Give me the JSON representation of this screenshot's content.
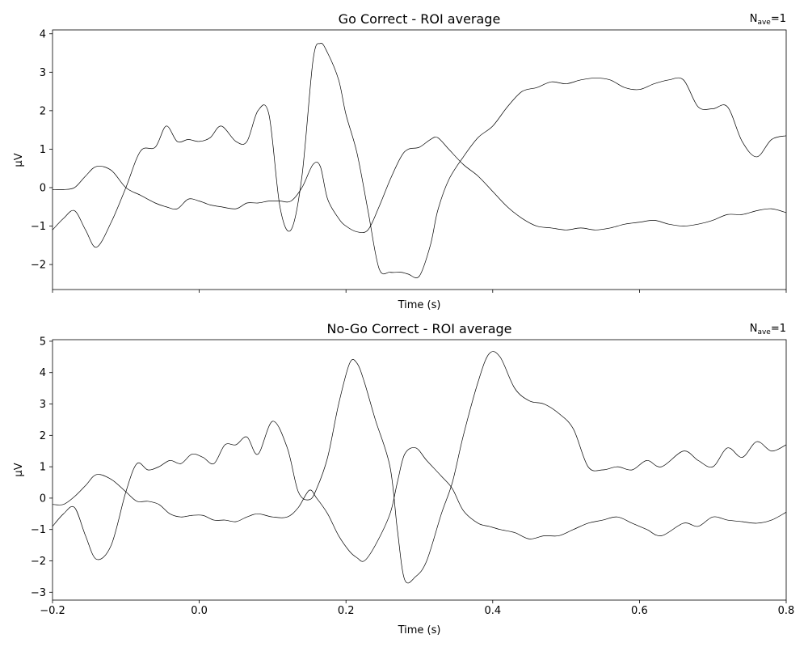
{
  "chart_data": [
    {
      "type": "line",
      "title": "Go Correct - ROI average",
      "annotation": {
        "main": "N",
        "sub": "ave",
        "suffix": "=1"
      },
      "xlabel": "Time (s)",
      "ylabel": "μV",
      "xlim": [
        -0.2,
        0.8
      ],
      "ylim": [
        -2.65,
        4.1
      ],
      "xticks": [
        -0.2,
        0.0,
        0.2,
        0.4,
        0.6,
        0.8
      ],
      "xtick_labels_visible": false,
      "yticks": [
        -2,
        -1,
        0,
        1,
        2,
        3,
        4
      ],
      "ytick_labels": [
        "−2",
        "−1",
        "0",
        "1",
        "2",
        "3",
        "4"
      ],
      "grid": false,
      "series": [
        {
          "color": "#000000",
          "x": [
            -0.2,
            -0.185,
            -0.17,
            -0.155,
            -0.14,
            -0.12,
            -0.1,
            -0.08,
            -0.06,
            -0.045,
            -0.03,
            -0.015,
            0.0,
            0.015,
            0.03,
            0.05,
            0.065,
            0.08,
            0.095,
            0.11,
            0.125,
            0.14,
            0.155,
            0.165,
            0.175,
            0.19,
            0.2,
            0.215,
            0.23,
            0.245,
            0.26,
            0.275,
            0.285,
            0.3,
            0.315,
            0.325,
            0.34,
            0.36,
            0.38,
            0.4,
            0.42,
            0.44,
            0.46,
            0.48,
            0.5,
            0.52,
            0.54,
            0.56,
            0.58,
            0.6,
            0.62,
            0.64,
            0.66,
            0.68,
            0.7,
            0.72,
            0.74,
            0.76,
            0.78,
            0.8
          ],
          "y": [
            -1.1,
            -0.8,
            -0.6,
            -1.1,
            -1.55,
            -0.9,
            0.0,
            0.95,
            1.05,
            1.6,
            1.2,
            1.25,
            1.2,
            1.3,
            1.6,
            1.2,
            1.2,
            2.0,
            1.9,
            -0.5,
            -1.1,
            0.3,
            3.3,
            3.75,
            3.5,
            2.8,
            1.9,
            0.9,
            -0.6,
            -2.1,
            -2.2,
            -2.2,
            -2.25,
            -2.3,
            -1.5,
            -0.6,
            0.2,
            0.8,
            1.3,
            1.6,
            2.1,
            2.5,
            2.6,
            2.75,
            2.7,
            2.8,
            2.85,
            2.8,
            2.6,
            2.55,
            2.7,
            2.8,
            2.8,
            2.1,
            2.05,
            2.1,
            1.2,
            0.8,
            1.25,
            1.35
          ]
        },
        {
          "color": "#000000",
          "x": [
            -0.2,
            -0.185,
            -0.17,
            -0.155,
            -0.14,
            -0.12,
            -0.1,
            -0.08,
            -0.06,
            -0.045,
            -0.03,
            -0.015,
            0.0,
            0.015,
            0.03,
            0.05,
            0.065,
            0.08,
            0.095,
            0.11,
            0.125,
            0.14,
            0.155,
            0.165,
            0.175,
            0.19,
            0.2,
            0.215,
            0.23,
            0.245,
            0.26,
            0.275,
            0.285,
            0.3,
            0.315,
            0.325,
            0.34,
            0.36,
            0.38,
            0.4,
            0.42,
            0.44,
            0.46,
            0.48,
            0.5,
            0.52,
            0.54,
            0.56,
            0.58,
            0.6,
            0.62,
            0.64,
            0.66,
            0.68,
            0.7,
            0.72,
            0.74,
            0.76,
            0.78,
            0.8
          ],
          "y": [
            -0.05,
            -0.05,
            0.0,
            0.3,
            0.55,
            0.45,
            0.0,
            -0.2,
            -0.4,
            -0.5,
            -0.55,
            -0.3,
            -0.35,
            -0.45,
            -0.5,
            -0.55,
            -0.4,
            -0.4,
            -0.35,
            -0.35,
            -0.35,
            0.0,
            0.6,
            0.55,
            -0.3,
            -0.8,
            -1.0,
            -1.15,
            -1.1,
            -0.5,
            0.2,
            0.8,
            1.0,
            1.05,
            1.25,
            1.3,
            1.0,
            0.6,
            0.3,
            -0.1,
            -0.5,
            -0.8,
            -1.0,
            -1.05,
            -1.1,
            -1.05,
            -1.1,
            -1.05,
            -0.95,
            -0.9,
            -0.85,
            -0.95,
            -1.0,
            -0.95,
            -0.85,
            -0.7,
            -0.7,
            -0.6,
            -0.55,
            -0.65
          ]
        }
      ]
    },
    {
      "type": "line",
      "title": "No-Go Correct - ROI average",
      "annotation": {
        "main": "N",
        "sub": "ave",
        "suffix": "=1"
      },
      "xlabel": "Time (s)",
      "ylabel": "μV",
      "xlim": [
        -0.2,
        0.8
      ],
      "ylim": [
        -3.25,
        5.05
      ],
      "xticks": [
        -0.2,
        0.0,
        0.2,
        0.4,
        0.6,
        0.8
      ],
      "xtick_labels": [
        "−0.2",
        "0.0",
        "0.2",
        "0.4",
        "0.6",
        "0.8"
      ],
      "xtick_labels_visible": true,
      "yticks": [
        -3,
        -2,
        -1,
        0,
        1,
        2,
        3,
        4,
        5
      ],
      "ytick_labels": [
        "−3",
        "−2",
        "−1",
        "0",
        "1",
        "2",
        "3",
        "4",
        "5"
      ],
      "grid": false,
      "series": [
        {
          "color": "#000000",
          "x": [
            -0.2,
            -0.185,
            -0.17,
            -0.155,
            -0.14,
            -0.12,
            -0.1,
            -0.085,
            -0.07,
            -0.055,
            -0.04,
            -0.025,
            -0.01,
            0.005,
            0.02,
            0.035,
            0.05,
            0.065,
            0.08,
            0.1,
            0.12,
            0.135,
            0.15,
            0.16,
            0.175,
            0.19,
            0.205,
            0.215,
            0.225,
            0.24,
            0.26,
            0.27,
            0.28,
            0.295,
            0.31,
            0.33,
            0.345,
            0.36,
            0.38,
            0.395,
            0.41,
            0.43,
            0.45,
            0.47,
            0.49,
            0.51,
            0.53,
            0.55,
            0.57,
            0.59,
            0.61,
            0.63,
            0.66,
            0.68,
            0.7,
            0.72,
            0.74,
            0.76,
            0.78,
            0.8
          ],
          "y": [
            -0.9,
            -0.5,
            -0.3,
            -1.2,
            -1.95,
            -1.5,
            0.2,
            1.1,
            0.9,
            1.0,
            1.2,
            1.1,
            1.4,
            1.3,
            1.1,
            1.7,
            1.7,
            1.95,
            1.4,
            2.45,
            1.6,
            0.2,
            -0.05,
            0.3,
            1.3,
            3.0,
            4.3,
            4.3,
            3.7,
            2.5,
            1.0,
            -1.0,
            -2.6,
            -2.5,
            -2.0,
            -0.5,
            0.5,
            2.0,
            3.7,
            4.6,
            4.5,
            3.5,
            3.1,
            3.0,
            2.7,
            2.2,
            1.0,
            0.9,
            1.0,
            0.9,
            1.2,
            1.0,
            1.5,
            1.2,
            1.0,
            1.6,
            1.3,
            1.8,
            1.5,
            1.7
          ]
        },
        {
          "color": "#000000",
          "x": [
            -0.2,
            -0.185,
            -0.17,
            -0.155,
            -0.14,
            -0.12,
            -0.1,
            -0.085,
            -0.07,
            -0.055,
            -0.04,
            -0.025,
            -0.01,
            0.005,
            0.02,
            0.035,
            0.05,
            0.065,
            0.08,
            0.1,
            0.12,
            0.135,
            0.15,
            0.16,
            0.175,
            0.19,
            0.205,
            0.215,
            0.225,
            0.24,
            0.26,
            0.27,
            0.28,
            0.295,
            0.31,
            0.33,
            0.345,
            0.36,
            0.38,
            0.395,
            0.41,
            0.43,
            0.45,
            0.47,
            0.49,
            0.51,
            0.53,
            0.55,
            0.57,
            0.59,
            0.61,
            0.63,
            0.66,
            0.68,
            0.7,
            0.72,
            0.74,
            0.76,
            0.78,
            0.8
          ],
          "y": [
            -0.2,
            -0.2,
            0.05,
            0.4,
            0.75,
            0.6,
            0.2,
            -0.1,
            -0.1,
            -0.2,
            -0.5,
            -0.6,
            -0.55,
            -0.55,
            -0.7,
            -0.7,
            -0.75,
            -0.6,
            -0.5,
            -0.6,
            -0.6,
            -0.3,
            0.25,
            0.0,
            -0.5,
            -1.2,
            -1.7,
            -1.9,
            -2.0,
            -1.5,
            -0.5,
            0.5,
            1.4,
            1.6,
            1.2,
            0.7,
            0.3,
            -0.4,
            -0.8,
            -0.9,
            -1.0,
            -1.1,
            -1.3,
            -1.2,
            -1.2,
            -1.0,
            -0.8,
            -0.7,
            -0.6,
            -0.8,
            -1.0,
            -1.2,
            -0.8,
            -0.9,
            -0.6,
            -0.7,
            -0.75,
            -0.8,
            -0.7,
            -0.45
          ]
        }
      ]
    }
  ]
}
